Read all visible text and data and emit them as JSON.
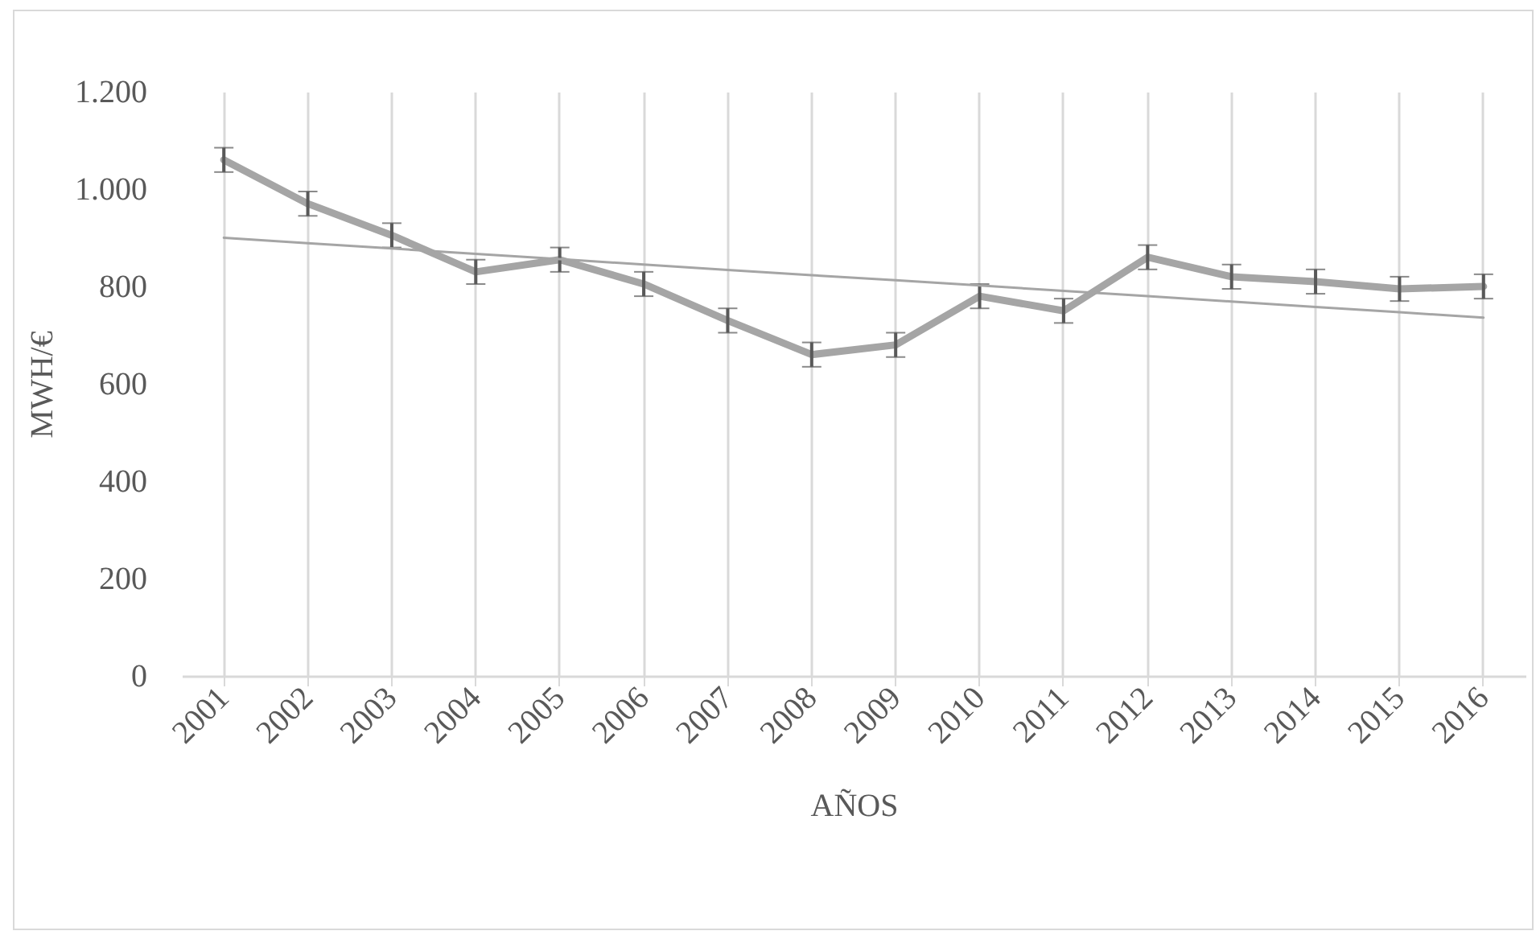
{
  "chart_data": {
    "type": "line",
    "xlabel": "AÑOS",
    "ylabel": "MWH/€",
    "categories": [
      "2001",
      "2002",
      "2003",
      "2004",
      "2005",
      "2006",
      "2007",
      "2008",
      "2009",
      "2010",
      "2011",
      "2012",
      "2013",
      "2014",
      "2015",
      "2016"
    ],
    "series": [
      {
        "color": "#a5a5a5",
        "values": [
          1060,
          970,
          905,
          830,
          855,
          805,
          730,
          660,
          680,
          780,
          750,
          860,
          820,
          810,
          795,
          800
        ],
        "errors": [
          25,
          25,
          25,
          25,
          25,
          25,
          25,
          25,
          25,
          25,
          25,
          25,
          25,
          25,
          25,
          25
        ]
      },
      {
        "type": "line",
        "color": "#a5a5a5",
        "values": [
          900,
          889,
          878,
          867,
          856,
          845,
          834,
          823,
          813,
          802,
          791,
          780,
          769,
          758,
          747,
          736
        ]
      }
    ],
    "ylim": [
      0,
      1200
    ],
    "yticks": [
      {
        "value": 0,
        "label": "0"
      },
      {
        "value": 200,
        "label": "200"
      },
      {
        "value": 400,
        "label": "400"
      },
      {
        "value": 600,
        "label": "600"
      },
      {
        "value": 800,
        "label": "800"
      },
      {
        "value": 1000,
        "label": "1.000"
      },
      {
        "value": 1200,
        "label": "1.200"
      }
    ],
    "grid": "x",
    "legend": false,
    "marker": "none"
  }
}
